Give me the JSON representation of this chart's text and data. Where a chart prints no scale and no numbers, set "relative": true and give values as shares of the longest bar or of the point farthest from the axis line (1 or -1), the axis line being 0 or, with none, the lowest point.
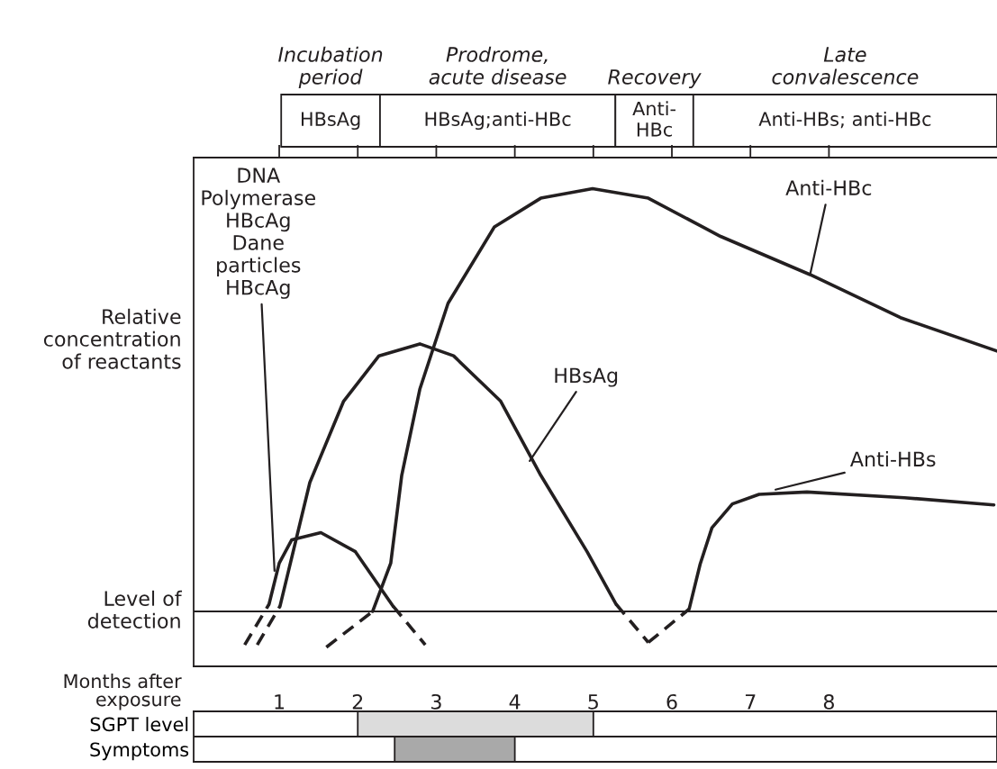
{
  "chart_data": [
    {
      "type": "other",
      "annotations": [
        "Incubation\nperiod",
        "Prodrome,\nacute disease",
        "Recovery",
        "Late\nconvalescence",
        "HBsAg",
        "HBsAg;anti-HBc",
        "Anti-\nHBc",
        "Anti-HBs; anti-HBc"
      ]
    },
    {
      "type": "line",
      "relative": true,
      "xlabel": "Months after\nexposure",
      "ylabel": "Relative\nconcentration\nof reactants",
      "xlim": [
        -0.09,
        10.14
      ],
      "xticks": [
        1,
        2,
        3,
        4,
        5,
        6,
        7,
        8
      ],
      "ref_lines": [
        {
          "axis": "y",
          "value": 0.115,
          "label": "Level of\ndetection",
          "color": "#231f20"
        }
      ],
      "series": [
        {
          "color": "#231f20",
          "line_style": "dashed",
          "x": [
            0.56,
            0.87
          ],
          "values": [
            0.045,
            0.13
          ]
        },
        {
          "color": "#231f20",
          "line_style": "solid",
          "x": [
            0.87,
            1.0,
            1.16,
            1.53,
            1.97,
            2.45
          ],
          "values": [
            0.13,
            0.216,
            0.265,
            0.28,
            0.24,
            0.126
          ]
        },
        {
          "color": "#231f20",
          "line_style": "dashed",
          "x": [
            2.45,
            2.86
          ],
          "values": [
            0.126,
            0.045
          ]
        },
        {
          "color": "#231f20",
          "line_style": "dashed",
          "x": [
            0.72,
            1.01
          ],
          "values": [
            0.045,
            0.126
          ]
        },
        {
          "color": "#231f20",
          "line_style": "solid",
          "x": [
            1.01,
            1.39,
            1.82,
            2.27,
            2.79,
            3.22,
            3.82,
            4.33,
            4.92,
            5.29
          ],
          "values": [
            0.126,
            0.385,
            0.555,
            0.65,
            0.675,
            0.65,
            0.555,
            0.4,
            0.24,
            0.13
          ]
        },
        {
          "color": "#231f20",
          "line_style": "dashed",
          "x": [
            5.29,
            5.7
          ],
          "values": [
            0.13,
            0.05
          ]
        },
        {
          "color": "#231f20",
          "line_style": "dashed",
          "x": [
            5.7,
            6.22
          ],
          "values": [
            0.05,
            0.12
          ]
        },
        {
          "color": "#231f20",
          "line_style": "solid",
          "x": [
            6.22,
            6.36,
            6.51,
            6.77,
            7.11,
            7.72,
            8.96,
            10.1
          ],
          "values": [
            0.12,
            0.214,
            0.29,
            0.34,
            0.36,
            0.365,
            0.353,
            0.338
          ]
        },
        {
          "color": "#231f20",
          "line_style": "dashed",
          "x": [
            1.6,
            2.19
          ],
          "values": [
            0.04,
            0.115
          ]
        },
        {
          "color": "#231f20",
          "line_style": "solid",
          "x": [
            2.19,
            2.42,
            2.56,
            2.79,
            3.15,
            3.74,
            4.33,
            4.99,
            5.7,
            6.62,
            7.76,
            8.91,
            10.14
          ],
          "values": [
            0.115,
            0.216,
            0.4,
            0.58,
            0.76,
            0.92,
            0.98,
            1.0,
            0.98,
            0.9,
            0.82,
            0.73,
            0.66
          ]
        }
      ],
      "annotations": [
        {
          "text": "Anti-HBc",
          "x": 7.76,
          "y": 0.82
        },
        {
          "text": "HBsAg",
          "x": 4.19,
          "y": 0.43
        },
        {
          "text": "Anti-HBs",
          "x": 7.32,
          "y": 0.37
        },
        {
          "text": "DNA\nPolymerase\nHBcAg\nDane\nparticles\nHBcAg",
          "x": 0.94,
          "y": 0.2
        }
      ]
    },
    {
      "type": "bar",
      "orientation": "horizontal",
      "categories": [
        "SGPT level",
        "Symptoms"
      ],
      "base": [
        2.0,
        2.47
      ],
      "values": [
        3.0,
        1.53
      ],
      "colors": [
        "#dcdcdc",
        "#a9a9a9"
      ],
      "xlim": [
        -0.09,
        10.14
      ],
      "tick_labels": "y"
    }
  ]
}
